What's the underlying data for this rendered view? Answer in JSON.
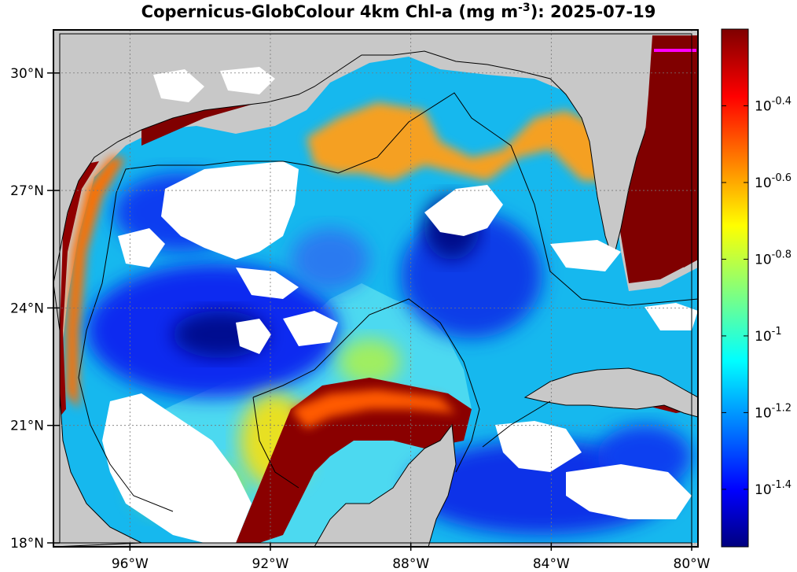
{
  "title": {
    "prefix": "Copernicus-GlobColour 4km Chl-a (mg m",
    "superscript": "-3",
    "suffix": "): 2025-07-19"
  },
  "map": {
    "lon_range": [
      -98,
      -80
    ],
    "lat_range": [
      18,
      31
    ],
    "lon_ticks": [
      {
        "value": -96,
        "label": "96°W"
      },
      {
        "value": -92,
        "label": "92°W"
      },
      {
        "value": -88,
        "label": "88°W"
      },
      {
        "value": -84,
        "label": "84°W"
      },
      {
        "value": -80,
        "label": "80°W"
      }
    ],
    "lat_ticks": [
      {
        "value": 18,
        "label": "18°N"
      },
      {
        "value": 21,
        "label": "21°N"
      },
      {
        "value": 24,
        "label": "24°N"
      },
      {
        "value": 27,
        "label": "27°N"
      },
      {
        "value": 30,
        "label": "30°N"
      }
    ],
    "land_color": "#c8c8c8",
    "nodata_color": "#ffffff",
    "grid": "dotted"
  },
  "colorbar": {
    "scale": "log10",
    "range_log10": [
      -1.55,
      -0.2
    ],
    "colormap": "jet",
    "ticks": [
      {
        "value": -0.4,
        "base": "10",
        "exp": "-0.4"
      },
      {
        "value": -0.6,
        "base": "10",
        "exp": "-0.6"
      },
      {
        "value": -0.8,
        "base": "10",
        "exp": "-0.8"
      },
      {
        "value": -1.0,
        "base": "10",
        "exp": "-1"
      },
      {
        "value": -1.2,
        "base": "10",
        "exp": "-1.2"
      },
      {
        "value": -1.4,
        "base": "10",
        "exp": "-1.4"
      }
    ]
  }
}
